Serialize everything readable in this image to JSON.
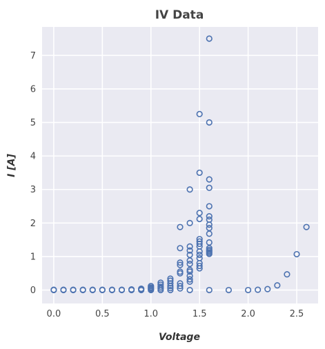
{
  "chart_data": {
    "type": "scatter",
    "title": "IV Data",
    "xlabel": "Voltage",
    "ylabel": "I [A]",
    "xlim": [
      -0.12,
      2.72
    ],
    "ylim": [
      -0.4,
      7.85
    ],
    "xticks": [
      0.0,
      0.5,
      1.0,
      1.5,
      2.0,
      2.5
    ],
    "yticks": [
      0,
      1,
      2,
      3,
      4,
      5,
      6,
      7
    ],
    "xtick_labels": [
      "0.0",
      "0.5",
      "1.0",
      "1.5",
      "2.0",
      "2.5"
    ],
    "ytick_labels": [
      "0",
      "1",
      "2",
      "3",
      "4",
      "5",
      "6",
      "7"
    ],
    "grid": true,
    "background": "#EAEAF2",
    "marker": "open-circle",
    "marker_color": "#4C72B0",
    "series": [
      {
        "points": [
          [
            0.0,
            0.0
          ],
          [
            0.0,
            0.01
          ],
          [
            0.1,
            0.0
          ],
          [
            0.1,
            0.01
          ],
          [
            0.2,
            0.0
          ],
          [
            0.2,
            0.01
          ],
          [
            0.3,
            0.0
          ],
          [
            0.3,
            0.01
          ],
          [
            0.4,
            0.0
          ],
          [
            0.4,
            0.01
          ],
          [
            0.5,
            0.0
          ],
          [
            0.5,
            0.01
          ],
          [
            0.6,
            0.0
          ],
          [
            0.6,
            0.01
          ],
          [
            0.7,
            0.0
          ],
          [
            0.7,
            0.01
          ],
          [
            0.8,
            0.0
          ],
          [
            0.8,
            0.02
          ],
          [
            0.9,
            0.0
          ],
          [
            0.9,
            0.02
          ],
          [
            0.9,
            0.04
          ],
          [
            1.0,
            0.0
          ],
          [
            1.0,
            0.02
          ],
          [
            1.0,
            0.05
          ],
          [
            1.0,
            0.08
          ],
          [
            1.0,
            0.12
          ],
          [
            1.1,
            0.0
          ],
          [
            1.1,
            0.05
          ],
          [
            1.1,
            0.1
          ],
          [
            1.1,
            0.16
          ],
          [
            1.1,
            0.22
          ],
          [
            1.2,
            0.0
          ],
          [
            1.2,
            0.06
          ],
          [
            1.2,
            0.12
          ],
          [
            1.2,
            0.2
          ],
          [
            1.2,
            0.28
          ],
          [
            1.2,
            0.34
          ],
          [
            1.3,
            0.05
          ],
          [
            1.3,
            0.12
          ],
          [
            1.3,
            0.2
          ],
          [
            1.3,
            0.5
          ],
          [
            1.3,
            0.55
          ],
          [
            1.3,
            0.75
          ],
          [
            1.3,
            0.82
          ],
          [
            1.3,
            1.25
          ],
          [
            1.3,
            1.88
          ],
          [
            1.4,
            0.0
          ],
          [
            1.4,
            0.25
          ],
          [
            1.4,
            0.32
          ],
          [
            1.4,
            0.42
          ],
          [
            1.4,
            0.55
          ],
          [
            1.4,
            0.6
          ],
          [
            1.4,
            0.78
          ],
          [
            1.4,
            0.88
          ],
          [
            1.4,
            1.05
          ],
          [
            1.4,
            1.18
          ],
          [
            1.4,
            1.3
          ],
          [
            1.4,
            2.0
          ],
          [
            1.4,
            3.0
          ],
          [
            1.5,
            0.65
          ],
          [
            1.5,
            0.72
          ],
          [
            1.5,
            0.8
          ],
          [
            1.5,
            0.95
          ],
          [
            1.5,
            1.05
          ],
          [
            1.5,
            1.15
          ],
          [
            1.5,
            1.3
          ],
          [
            1.5,
            1.38
          ],
          [
            1.5,
            1.45
          ],
          [
            1.5,
            1.52
          ],
          [
            1.5,
            2.12
          ],
          [
            1.5,
            2.3
          ],
          [
            1.5,
            3.5
          ],
          [
            1.5,
            5.25
          ],
          [
            1.6,
            0.0
          ],
          [
            1.6,
            1.08
          ],
          [
            1.6,
            1.12
          ],
          [
            1.6,
            1.16
          ],
          [
            1.6,
            1.2
          ],
          [
            1.6,
            1.25
          ],
          [
            1.6,
            1.42
          ],
          [
            1.6,
            1.68
          ],
          [
            1.6,
            1.85
          ],
          [
            1.6,
            1.95
          ],
          [
            1.6,
            2.1
          ],
          [
            1.6,
            2.2
          ],
          [
            1.6,
            2.5
          ],
          [
            1.6,
            3.05
          ],
          [
            1.6,
            3.3
          ],
          [
            1.6,
            5.0
          ],
          [
            1.6,
            7.5
          ],
          [
            1.8,
            0.0
          ],
          [
            2.0,
            0.0
          ],
          [
            2.1,
            0.01
          ],
          [
            2.2,
            0.03
          ],
          [
            2.3,
            0.14
          ],
          [
            2.4,
            0.47
          ],
          [
            2.5,
            1.07
          ],
          [
            2.6,
            1.88
          ]
        ]
      }
    ]
  }
}
